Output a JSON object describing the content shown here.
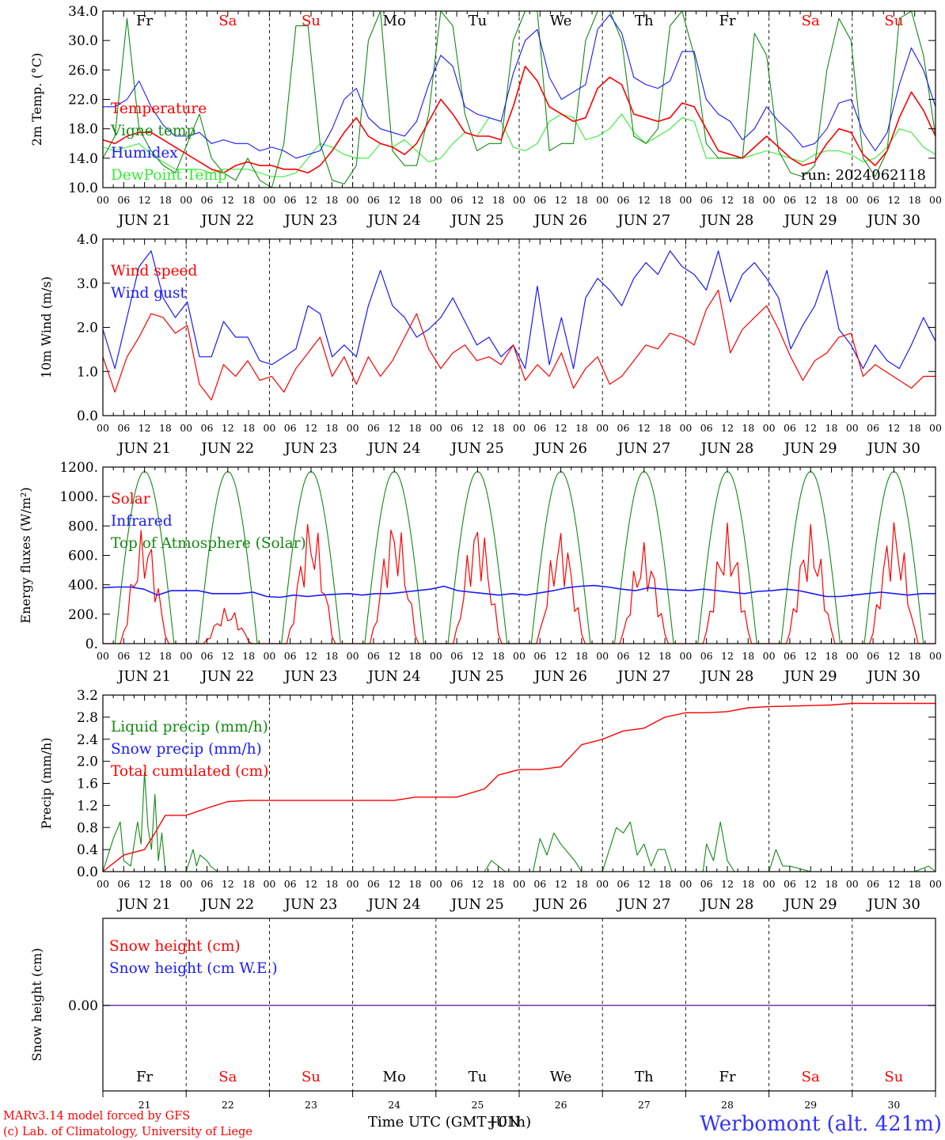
{
  "colors": {
    "red": "#ff0000",
    "green": "#138a13",
    "blue": "#1a1aff",
    "lightgreen": "#33ee33",
    "purple": "#7030a0",
    "black": "#000000",
    "station": "#3333ff"
  },
  "days_top": [
    {
      "label": "Fr",
      "color": "black"
    },
    {
      "label": "Sa",
      "color": "red"
    },
    {
      "label": "Su",
      "color": "red"
    },
    {
      "label": "Mo",
      "color": "black"
    },
    {
      "label": "Tu",
      "color": "black"
    },
    {
      "label": "We",
      "color": "black"
    },
    {
      "label": "Th",
      "color": "black"
    },
    {
      "label": "Fr",
      "color": "black"
    },
    {
      "label": "Sa",
      "color": "red"
    },
    {
      "label": "Su",
      "color": "red"
    }
  ],
  "date_labels": [
    "JUN 21",
    "JUN 22",
    "JUN 23",
    "JUN 24",
    "JUN 25",
    "JUN 26",
    "JUN 27",
    "JUN 28",
    "JUN 29",
    "JUN 30"
  ],
  "hour_labels": [
    "00",
    "06",
    "12",
    "18"
  ],
  "day_numbers": [
    "21",
    "22",
    "23",
    "24",
    "25",
    "26",
    "27",
    "28",
    "29",
    "30"
  ],
  "run_label": "run: 2024062118",
  "xlabel": "Time UTC (GMT+01h)",
  "overlap_text": "JUN",
  "footer": {
    "line1": "MARv3.14 model forced by GFS",
    "line2": "(c) Lab. of Climatology, University of Liege"
  },
  "station": "Werbomont (alt. 421m)",
  "chart_data": [
    {
      "type": "line",
      "id": "temp",
      "ylabel": "2m Temp. (°C)",
      "ylim": [
        10,
        34
      ],
      "ytick_labels": [
        "10.0",
        "14.0",
        "18.0",
        "22.0",
        "26.0",
        "30.0",
        "34.0"
      ],
      "legend": [
        {
          "label": "Temperature",
          "color": "red"
        },
        {
          "label": "Vigne temp",
          "color": "green"
        },
        {
          "label": "Humidex",
          "color": "blue"
        },
        {
          "label": "DewPoint Temp",
          "color": "lightgreen"
        }
      ],
      "series": [
        {
          "name": "Temperature",
          "color": "red",
          "values": [
            16.5,
            16.0,
            17.0,
            17.5,
            17.5,
            16.5,
            15.5,
            14.5,
            13.5,
            12.5,
            12.0,
            13.0,
            13.5,
            13.0,
            13.0,
            12.5,
            12.5,
            12.0,
            13.0,
            15.0,
            17.5,
            19.5,
            17.0,
            16.0,
            15.5,
            14.5,
            16.0,
            19.0,
            22.0,
            20.0,
            17.5,
            17.0,
            17.0,
            16.5,
            21.0,
            26.5,
            24.5,
            21.0,
            20.0,
            19.0,
            19.5,
            23.5,
            25.0,
            24.0,
            20.0,
            19.5,
            19.0,
            19.5,
            21.5,
            21.0,
            18.0,
            15.0,
            14.5,
            14.0,
            15.5,
            17.0,
            15.5,
            14.0,
            13.0,
            13.5,
            16.0,
            18.0,
            17.5,
            14.5,
            13.0,
            15.0,
            19.5,
            23.0,
            20.5,
            17.0
          ]
        },
        {
          "name": "Vigne temp",
          "color": "green",
          "values": [
            14.0,
            17.0,
            33.0,
            18.0,
            15.0,
            13.0,
            12.0,
            16.0,
            20.0,
            14.0,
            12.0,
            11.0,
            14.0,
            11.0,
            10.0,
            16.0,
            32.0,
            32.0,
            16.0,
            11.0,
            10.5,
            13.0,
            30.0,
            34.0,
            15.0,
            13.0,
            13.0,
            20.0,
            34.0,
            32.0,
            20.0,
            15.0,
            16.0,
            16.0,
            30.0,
            34.0,
            35.0,
            15.0,
            16.0,
            16.0,
            30.0,
            35.0,
            34.0,
            30.0,
            17.0,
            16.0,
            18.0,
            32.0,
            34.0,
            28.0,
            16.0,
            14.0,
            14.0,
            14.0,
            31.0,
            28.0,
            15.0,
            12.0,
            11.5,
            13.0,
            26.0,
            33.0,
            30.0,
            14.0,
            11.5,
            15.0,
            33.0,
            34.0,
            28.0,
            17.0
          ]
        },
        {
          "name": "Humidex",
          "color": "blue",
          "values": [
            21.0,
            21.0,
            22.0,
            24.5,
            21.0,
            18.5,
            17.0,
            17.0,
            17.5,
            16.0,
            16.5,
            16.0,
            16.0,
            15.0,
            15.5,
            15.0,
            14.0,
            14.5,
            15.0,
            18.0,
            22.0,
            23.5,
            19.5,
            18.0,
            17.5,
            17.0,
            19.0,
            24.0,
            28.0,
            26.5,
            21.0,
            20.0,
            19.5,
            19.0,
            25.5,
            30.0,
            31.5,
            25.0,
            22.0,
            23.0,
            24.0,
            31.5,
            33.5,
            31.0,
            25.0,
            24.0,
            23.5,
            24.5,
            28.5,
            28.5,
            22.0,
            20.0,
            19.0,
            16.5,
            18.0,
            21.0,
            19.0,
            17.5,
            15.5,
            16.0,
            18.0,
            21.5,
            22.0,
            17.5,
            15.0,
            17.5,
            24.0,
            29.0,
            26.0,
            21.0
          ]
        },
        {
          "name": "DewPoint Temp",
          "color": "lightgreen",
          "values": [
            15.5,
            15.0,
            15.5,
            16.0,
            14.5,
            13.5,
            12.5,
            12.5,
            12.5,
            12.0,
            12.5,
            12.5,
            12.5,
            12.0,
            11.5,
            11.5,
            12.0,
            14.0,
            16.0,
            15.5,
            14.5,
            14.0,
            14.0,
            16.0,
            15.5,
            16.5,
            15.0,
            13.5,
            14.0,
            16.0,
            17.5,
            17.0,
            19.5,
            19.0,
            15.5,
            15.0,
            16.0,
            19.0,
            20.0,
            19.5,
            16.5,
            17.0,
            18.0,
            20.0,
            17.5,
            16.0,
            17.0,
            18.0,
            19.5,
            19.0,
            14.0,
            14.0,
            14.0,
            14.0,
            14.5,
            15.0,
            14.5,
            14.0,
            13.5,
            14.5,
            15.0,
            15.0,
            14.5,
            13.5,
            14.0,
            15.5,
            18.0,
            17.5,
            15.5,
            14.5
          ]
        }
      ]
    },
    {
      "type": "line",
      "id": "wind",
      "ylabel": "10m Wind (m/s)",
      "ylim": [
        0,
        4.5
      ],
      "ytick_labels": [
        "0.0",
        "1.0",
        "2.0",
        "3.0",
        "4.0"
      ],
      "legend": [
        {
          "label": "Wind speed",
          "color": "red"
        },
        {
          "label": "Wind gust",
          "color": "blue"
        }
      ],
      "series": [
        {
          "name": "Wind speed",
          "color": "red",
          "values": [
            1.5,
            0.6,
            1.5,
            2.0,
            2.6,
            2.5,
            2.1,
            2.3,
            0.8,
            0.4,
            1.3,
            1.0,
            1.4,
            0.9,
            1.0,
            0.6,
            1.2,
            1.6,
            2.0,
            1.0,
            1.5,
            0.8,
            1.5,
            1.0,
            1.4,
            2.0,
            2.6,
            1.7,
            1.2,
            1.6,
            1.8,
            1.4,
            1.5,
            1.3,
            1.8,
            0.9,
            1.3,
            1.0,
            1.6,
            0.7,
            1.2,
            1.5,
            0.8,
            1.0,
            1.4,
            1.8,
            1.7,
            2.1,
            2.0,
            1.8,
            2.7,
            3.2,
            1.6,
            2.2,
            2.5,
            2.8,
            2.2,
            1.5,
            0.9,
            1.4,
            1.6,
            2.0,
            2.1,
            1.0,
            1.3,
            1.1,
            0.9,
            0.7,
            1.0,
            1.0
          ]
        },
        {
          "name": "Wind gust",
          "color": "blue",
          "values": [
            2.2,
            1.2,
            2.5,
            3.8,
            4.2,
            3.0,
            2.5,
            2.9,
            1.5,
            1.5,
            2.4,
            2.0,
            2.0,
            1.4,
            1.3,
            1.5,
            1.7,
            2.8,
            2.6,
            1.5,
            1.8,
            1.5,
            2.8,
            3.7,
            2.8,
            2.5,
            2.0,
            2.2,
            2.5,
            3.0,
            2.4,
            1.8,
            2.0,
            1.5,
            1.8,
            1.2,
            3.3,
            1.3,
            2.5,
            1.2,
            3.0,
            3.5,
            3.2,
            2.8,
            3.5,
            3.9,
            3.6,
            4.2,
            3.8,
            3.6,
            3.2,
            4.2,
            2.9,
            3.6,
            3.9,
            3.5,
            3.0,
            1.7,
            2.3,
            2.8,
            3.7,
            2.2,
            1.8,
            1.2,
            1.8,
            1.4,
            1.2,
            1.8,
            2.5,
            1.9
          ]
        }
      ]
    },
    {
      "type": "line",
      "id": "energy",
      "ylabel": "Energy fluxes (W/m²)",
      "ylim": [
        0,
        1200
      ],
      "ytick_labels": [
        "0.",
        "200.",
        "400.",
        "600.",
        "800.",
        "1000.",
        "1200."
      ],
      "legend": [
        {
          "label": "Solar",
          "color": "red"
        },
        {
          "label": "Infrared",
          "color": "blue"
        },
        {
          "label": "Top of Atmosphere (Solar)",
          "color": "green"
        }
      ],
      "toa_peak": 1170,
      "solar_peaks": [
        800,
        250,
        870,
        880,
        870,
        800,
        700,
        820,
        820,
        870
      ],
      "infrared": [
        380,
        385,
        385,
        370,
        330,
        360,
        360,
        360,
        340,
        340,
        340,
        350,
        320,
        315,
        330,
        320,
        330,
        335,
        340,
        330,
        340,
        340,
        350,
        360,
        370,
        390,
        360,
        350,
        340,
        330,
        340,
        330,
        345,
        360,
        380,
        390,
        395,
        385,
        370,
        360,
        380,
        370,
        365,
        360,
        370,
        360,
        350,
        340,
        355,
        360,
        370,
        360,
        340,
        320,
        320,
        330,
        340,
        350,
        340,
        330,
        340,
        340
      ]
    },
    {
      "type": "line",
      "id": "precip",
      "ylabel": "Precip (mm/h)",
      "ylim": [
        0,
        3.2
      ],
      "ytick_labels": [
        "0.0",
        "0.4",
        "0.8",
        "1.2",
        "1.6",
        "2.0",
        "2.4",
        "2.8",
        "3.2"
      ],
      "legend": [
        {
          "label": "Liquid precip (mm/h)",
          "color": "green"
        },
        {
          "label": "Snow precip (mm/h)",
          "color": "blue"
        },
        {
          "label": "Total cumulated (cm)",
          "color": "red"
        }
      ],
      "series": [
        {
          "name": "Total cumulated (cm)",
          "color": "red",
          "x": [
            0,
            6,
            12,
            15,
            18,
            24,
            30,
            36,
            42,
            48,
            72,
            84,
            90,
            102,
            110,
            114,
            120,
            126,
            132,
            138,
            144,
            150,
            156,
            162,
            168,
            174,
            180,
            186,
            192,
            198,
            204,
            210,
            216,
            240
          ],
          "values": [
            0.0,
            0.3,
            0.4,
            0.7,
            1.02,
            1.02,
            1.15,
            1.27,
            1.29,
            1.29,
            1.29,
            1.29,
            1.35,
            1.35,
            1.5,
            1.75,
            1.85,
            1.85,
            1.9,
            2.3,
            2.4,
            2.55,
            2.6,
            2.8,
            2.88,
            2.88,
            2.9,
            2.97,
            2.99,
            3.0,
            3.01,
            3.02,
            3.05,
            3.05
          ]
        },
        {
          "name": "Liquid precip (mm/h)",
          "color": "green",
          "x": [
            0,
            3,
            5,
            6,
            8,
            10,
            11,
            12,
            13,
            14,
            15,
            16,
            17,
            18,
            20,
            24,
            26,
            27,
            28,
            30,
            31,
            33,
            36,
            40,
            48,
            110,
            112,
            114,
            116,
            124,
            126,
            128,
            130,
            132,
            136,
            138,
            144,
            148,
            150,
            152,
            154,
            156,
            158,
            160,
            162,
            164,
            168,
            173,
            174,
            176,
            178,
            180,
            182,
            192,
            194,
            196,
            198,
            204,
            234,
            238,
            240
          ],
          "values": [
            0.0,
            0.6,
            0.9,
            0.2,
            0.1,
            0.9,
            0.5,
            1.8,
            0.8,
            0.4,
            1.4,
            0.2,
            0.7,
            0.0,
            0.0,
            0.0,
            0.4,
            0.1,
            0.3,
            0.2,
            0.1,
            0.0,
            0.0,
            0.0,
            0.0,
            0.0,
            0.2,
            0.1,
            0.0,
            0.0,
            0.6,
            0.3,
            0.7,
            0.5,
            0.2,
            0.0,
            0.0,
            0.8,
            0.7,
            0.9,
            0.3,
            0.5,
            0.1,
            0.4,
            0.4,
            0.0,
            0.0,
            0.0,
            0.5,
            0.2,
            0.9,
            0.2,
            0.0,
            0.0,
            0.4,
            0.1,
            0.1,
            0.0,
            0.0,
            0.1,
            0.0
          ]
        }
      ]
    },
    {
      "type": "line",
      "id": "snow",
      "ylabel": "Snow height (cm)",
      "ytick_labels": [
        "0.00"
      ],
      "legend": [
        {
          "label": "Snow height (cm)",
          "color": "red"
        },
        {
          "label": "Snow height (cm W.E.)",
          "color": "blue"
        }
      ],
      "series": [
        {
          "name": "Snow height (cm)",
          "color": "purple",
          "values": [
            0,
            0
          ]
        }
      ]
    }
  ]
}
